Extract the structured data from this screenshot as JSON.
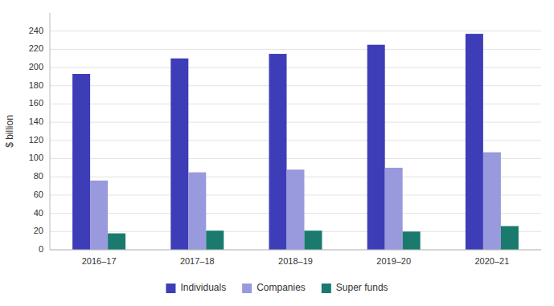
{
  "chart_data": {
    "type": "bar",
    "categories": [
      "2016–17",
      "2017–18",
      "2018–19",
      "2019–20",
      "2020–21"
    ],
    "series": [
      {
        "name": "Individuals",
        "color": "#3d3db8",
        "values": [
          193,
          210,
          215,
          225,
          237
        ]
      },
      {
        "name": "Companies",
        "color": "#9999dd",
        "values": [
          76,
          85,
          88,
          90,
          107
        ]
      },
      {
        "name": "Super funds",
        "color": "#1a7a6e",
        "values": [
          18,
          21,
          21,
          20,
          26
        ]
      }
    ],
    "ylabel": "$ billion",
    "ylim": [
      0,
      260
    ],
    "yticks": [
      0,
      20,
      40,
      60,
      80,
      100,
      120,
      140,
      160,
      180,
      200,
      220,
      240
    ],
    "grid": true,
    "legend": "bottom"
  }
}
